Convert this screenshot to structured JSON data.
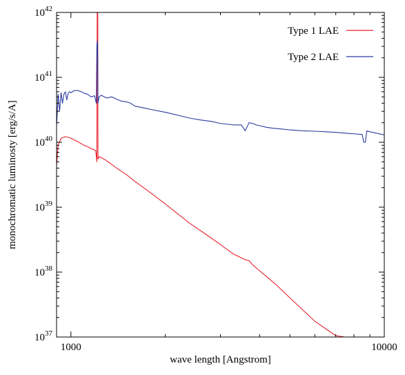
{
  "chart_data": {
    "type": "line",
    "xlabel": "wave length [Angstrom]",
    "ylabel": "monochromatic luminosty [erg/s/A]",
    "x_scale": "log",
    "y_scale": "log",
    "xlim": [
      900,
      10000
    ],
    "ylim": [
      1e+37,
      1e+42
    ],
    "x_ticks": [
      {
        "value": 1000,
        "label": "1000"
      },
      {
        "value": 10000,
        "label": "10000"
      }
    ],
    "y_ticks": [
      {
        "value": 1e+37,
        "base": "10",
        "exp": "37"
      },
      {
        "value": 1e+38,
        "base": "10",
        "exp": "38"
      },
      {
        "value": 1e+39,
        "base": "10",
        "exp": "39"
      },
      {
        "value": 1e+40,
        "base": "10",
        "exp": "40"
      },
      {
        "value": 1e+41,
        "base": "10",
        "exp": "41"
      },
      {
        "value": 1e+42,
        "base": "10",
        "exp": "42"
      }
    ],
    "legend_position": "top-right",
    "grid": false,
    "series": [
      {
        "name": "Type 1 LAE",
        "color": "#e8202a",
        "x": [
          900,
          910,
          930,
          960,
          990,
          1020,
          1060,
          1100,
          1150,
          1200,
          1210,
          1213,
          1214,
          1215,
          1216,
          1217,
          1218,
          1220,
          1230,
          1250,
          1300,
          1400,
          1500,
          1600,
          1800,
          2000,
          2200,
          2400,
          2700,
          3000,
          3300,
          3600,
          3700,
          3800,
          4000,
          4500,
          5000,
          5500,
          6000,
          7000,
          7500,
          8000
        ],
        "y": [
          4.4e+39,
          9e+39,
          1.15e+40,
          1.22e+40,
          1.18e+40,
          1.1e+40,
          1e+40,
          9e+39,
          8.2e+39,
          7.4e+39,
          5e+39,
          1e+42,
          1e+42,
          1e+42,
          1e+42,
          1e+42,
          1e+42,
          5.5e+39,
          6e+39,
          5.8e+39,
          5.2e+39,
          4e+39,
          3.2e+39,
          2.5e+39,
          1.65e+39,
          1.12e+39,
          7.8e+38,
          5.6e+38,
          3.8e+38,
          2.65e+38,
          1.9e+38,
          1.55e+38,
          1.5e+38,
          1.3e+38,
          1.05e+38,
          6.5e+37,
          4e+37,
          2.6e+37,
          1.75e+37,
          1.05e+37,
          1e+37,
          1e+37
        ]
      },
      {
        "name": "Type 2 LAE",
        "color": "#2a3aa0",
        "x": [
          900,
          905,
          910,
          920,
          930,
          940,
          950,
          960,
          970,
          980,
          990,
          1000,
          1020,
          1050,
          1080,
          1100,
          1130,
          1160,
          1190,
          1205,
          1210,
          1213,
          1215,
          1217,
          1220,
          1230,
          1250,
          1300,
          1350,
          1400,
          1450,
          1500,
          1550,
          1600,
          1700,
          1800,
          2000,
          2200,
          2400,
          2600,
          2800,
          3000,
          3300,
          3500,
          3600,
          3700,
          3800,
          3900,
          4000,
          4100,
          4200,
          4400,
          4700,
          5000,
          5500,
          6000,
          6500,
          7000,
          7500,
          8000,
          8500,
          8600,
          8700,
          8800,
          9000,
          10000
        ],
        "y": [
          1.8e+40,
          3e+40,
          5.5e+40,
          3e+40,
          5.8e+40,
          4e+40,
          5.5e+40,
          6e+40,
          4.5e+40,
          5.7e+40,
          6e+40,
          5.8e+40,
          6.2e+40,
          6.3e+40,
          6e+40,
          5.7e+40,
          5.5e+40,
          5e+40,
          5.2e+40,
          4e+40,
          3e+41,
          3.6e+41,
          3.4e+41,
          3e+41,
          4e+40,
          5e+40,
          5.3e+40,
          4.8e+40,
          5e+40,
          4.6e+40,
          4.3e+40,
          4.2e+40,
          4e+40,
          3.6e+40,
          3.4e+40,
          3.2e+40,
          2.9e+40,
          2.6e+40,
          2.35e+40,
          2.2e+40,
          2.1e+40,
          1.95e+40,
          1.85e+40,
          1.85e+40,
          1.5e+40,
          2e+40,
          1.95e+40,
          1.85e+40,
          1.8e+40,
          1.75e+40,
          1.7e+40,
          1.65e+40,
          1.6e+40,
          1.55e+40,
          1.5e+40,
          1.48e+40,
          1.45e+40,
          1.42e+40,
          1.38e+40,
          1.35e+40,
          1.32e+40,
          1e+40,
          1e+40,
          1.5e+40,
          1.45e+40,
          1.3e+40
        ]
      }
    ]
  }
}
